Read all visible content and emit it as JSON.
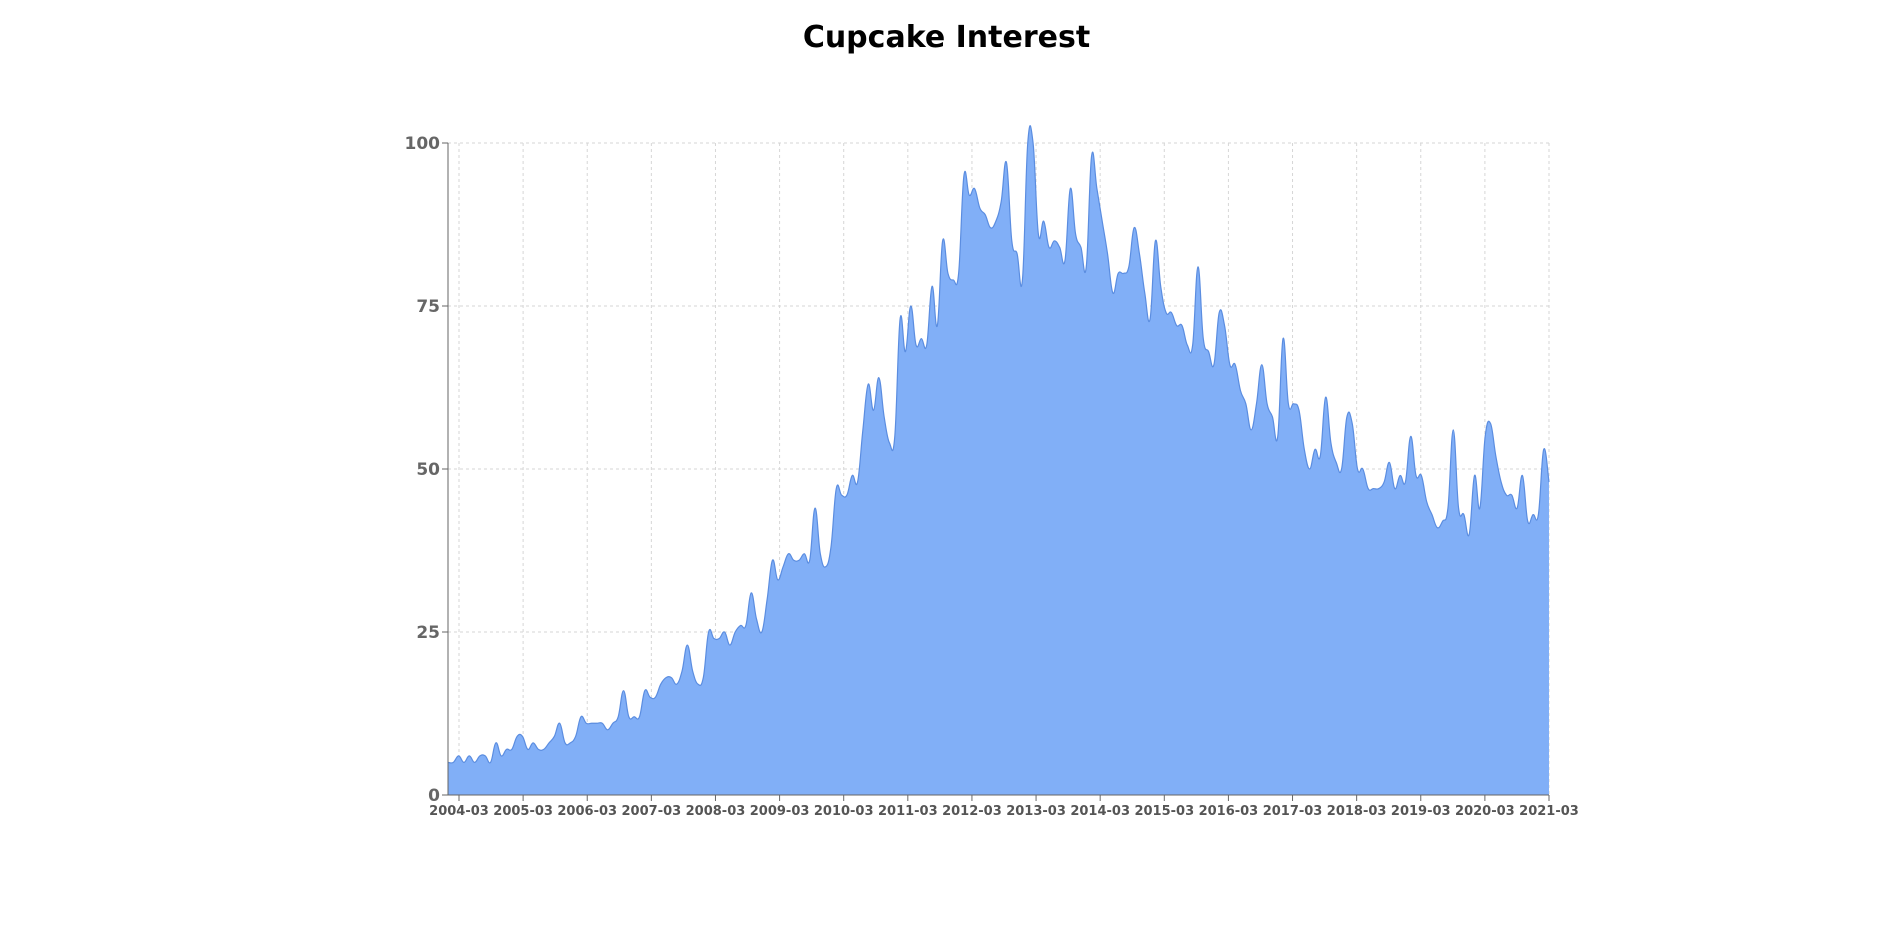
{
  "chart_data": {
    "type": "area",
    "title": "Cupcake Interest",
    "xlabel": "",
    "ylabel": "",
    "ylim": [
      0,
      100
    ],
    "yticks": [
      "0",
      "25",
      "50",
      "75",
      "100"
    ],
    "xticks": [
      "2004-03",
      "2005-03",
      "2006-03",
      "2007-03",
      "2008-03",
      "2009-03",
      "2010-03",
      "2011-03",
      "2012-03",
      "2013-03",
      "2014-03",
      "2015-03",
      "2016-03",
      "2017-03",
      "2018-03",
      "2019-03",
      "2020-03",
      "2021-03"
    ],
    "x_start": "2004-03",
    "grid": true,
    "fill_color": "#81aff7",
    "line_color": "#5b8de0",
    "series": [
      {
        "values": [
          5,
          5,
          6,
          5,
          6,
          5,
          6,
          6,
          5,
          8,
          6,
          7,
          7,
          9,
          9,
          7,
          8,
          7,
          7,
          8,
          9,
          11,
          8,
          8,
          9,
          12,
          11,
          11,
          11,
          11,
          10,
          11,
          12,
          16,
          12,
          12,
          12,
          16,
          15,
          15,
          17,
          18,
          18,
          17,
          19,
          23,
          19,
          17,
          18,
          25,
          24,
          24,
          25,
          23,
          25,
          26,
          26,
          31,
          27,
          25,
          30,
          36,
          33,
          35,
          37,
          36,
          36,
          37,
          36,
          44,
          37,
          35,
          38,
          47,
          46,
          46,
          49,
          48,
          56,
          63,
          59,
          64,
          58,
          54,
          55,
          73,
          68,
          75,
          69,
          70,
          69,
          78,
          72,
          85,
          80,
          79,
          80,
          95,
          92,
          93,
          90,
          89,
          87,
          88,
          91,
          97,
          85,
          83,
          79,
          100,
          100,
          86,
          88,
          84,
          85,
          84,
          82,
          93,
          86,
          84,
          81,
          98,
          93,
          88,
          83,
          77,
          80,
          80,
          81,
          87,
          83,
          77,
          73,
          85,
          78,
          74,
          74,
          72,
          72,
          69,
          69,
          81,
          70,
          68,
          66,
          74,
          72,
          66,
          66,
          62,
          60,
          56,
          60,
          66,
          60,
          58,
          55,
          70,
          60,
          60,
          59,
          53,
          50,
          53,
          52,
          61,
          54,
          51,
          50,
          58,
          57,
          50,
          50,
          47,
          47,
          47,
          48,
          51,
          47,
          49,
          48,
          55,
          49,
          49,
          45,
          43,
          41,
          42,
          44,
          56,
          44,
          43,
          40,
          49,
          44,
          55,
          57,
          52,
          48,
          46,
          46,
          44,
          49,
          42,
          43,
          43,
          53,
          48
        ]
      }
    ]
  }
}
